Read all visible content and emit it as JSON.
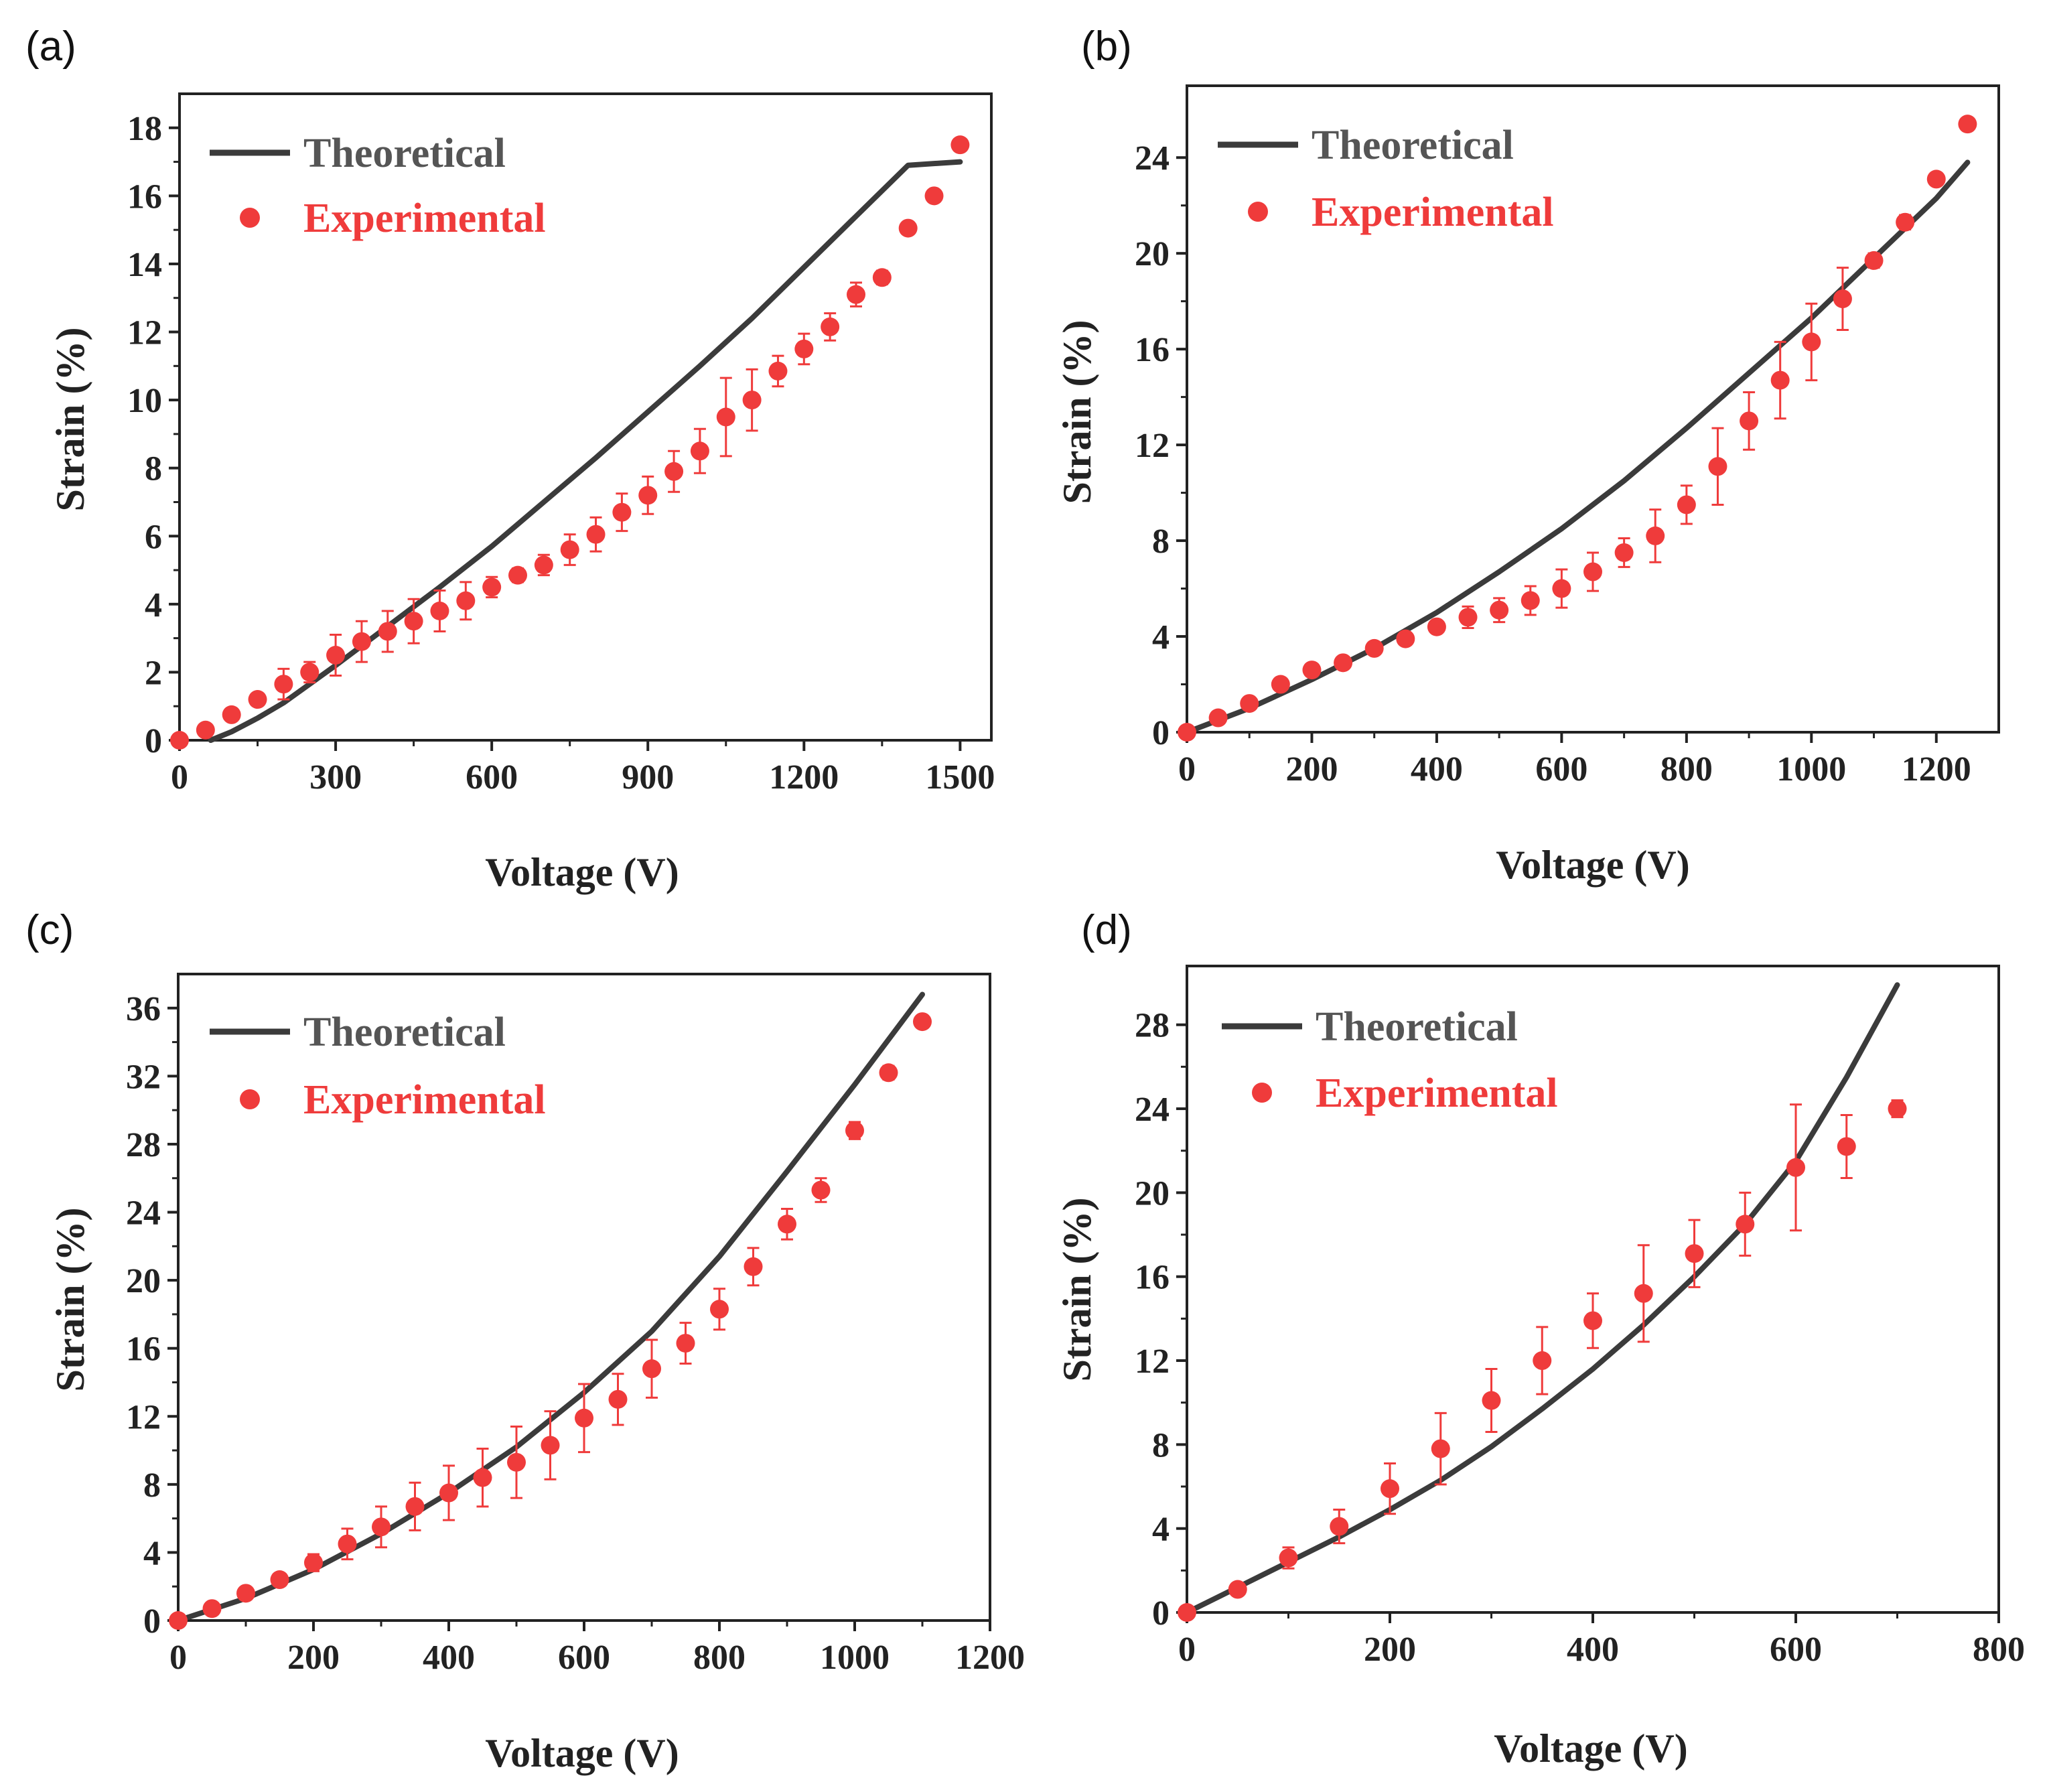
{
  "colors": {
    "theory": "#3b3b3b",
    "experimental": "#ef3b3b",
    "axis": "#222222",
    "background": "#ffffff"
  },
  "chart_data": [
    {
      "panel": "(a)",
      "type": "scatter",
      "xlabel": "Voltage (V)",
      "ylabel": "Strain (%)",
      "xlim": [
        0,
        1560
      ],
      "ylim": [
        0,
        19
      ],
      "xticks": [
        0,
        300,
        600,
        900,
        1200,
        1500
      ],
      "yticks": [
        0,
        2,
        4,
        6,
        8,
        10,
        12,
        14,
        16,
        18
      ],
      "legend": [
        "Theoretical",
        "Experimental"
      ],
      "legend_position": "top-left",
      "theoretical": {
        "x": [
          60,
          100,
          150,
          200,
          250,
          300,
          400,
          500,
          600,
          700,
          800,
          900,
          1000,
          1100,
          1200,
          1300,
          1400,
          1500
        ],
        "y": [
          0,
          0.25,
          0.65,
          1.1,
          1.65,
          2.2,
          3.35,
          4.5,
          5.7,
          7.0,
          8.3,
          9.65,
          11.0,
          12.4,
          13.9,
          15.4,
          16.9,
          17.0
        ]
      },
      "experimental": {
        "x": [
          0,
          50,
          100,
          150,
          200,
          250,
          300,
          350,
          400,
          450,
          500,
          550,
          600,
          650,
          700,
          750,
          800,
          850,
          900,
          950,
          1000,
          1050,
          1100,
          1150,
          1200,
          1250,
          1300,
          1350,
          1400,
          1450,
          1500
        ],
        "y": [
          0,
          0.3,
          0.75,
          1.2,
          1.65,
          2.0,
          2.5,
          2.9,
          3.2,
          3.5,
          3.8,
          4.1,
          4.5,
          4.85,
          5.15,
          5.6,
          6.05,
          6.7,
          7.2,
          7.9,
          8.5,
          9.5,
          10.0,
          10.85,
          11.5,
          12.15,
          13.1,
          13.6,
          15.05,
          16.0,
          17.5
        ],
        "err": [
          0,
          0,
          0,
          0,
          0.45,
          0.3,
          0.6,
          0.6,
          0.6,
          0.65,
          0.6,
          0.55,
          0.3,
          0.2,
          0.3,
          0.45,
          0.5,
          0.55,
          0.55,
          0.6,
          0.65,
          1.15,
          0.9,
          0.45,
          0.45,
          0.4,
          0.35,
          0.2,
          0.15,
          0.15,
          0
        ]
      }
    },
    {
      "panel": "(b)",
      "type": "scatter",
      "xlabel": "Voltage (V)",
      "ylabel": "Strain (%)",
      "xlim": [
        0,
        1300
      ],
      "ylim": [
        0,
        27
      ],
      "xticks": [
        0,
        200,
        400,
        600,
        800,
        1000,
        1200
      ],
      "yticks": [
        0,
        4,
        8,
        12,
        16,
        20,
        24
      ],
      "legend": [
        "Theoretical",
        "Experimental"
      ],
      "legend_position": "top-left",
      "theoretical": {
        "x": [
          0,
          100,
          200,
          300,
          400,
          500,
          600,
          700,
          800,
          900,
          1000,
          1100,
          1200,
          1250
        ],
        "y": [
          0,
          1.0,
          2.2,
          3.5,
          5.0,
          6.7,
          8.5,
          10.5,
          12.7,
          15.0,
          17.3,
          19.8,
          22.3,
          23.8
        ]
      },
      "experimental": {
        "x": [
          0,
          50,
          100,
          150,
          200,
          250,
          300,
          350,
          400,
          450,
          500,
          550,
          600,
          650,
          700,
          750,
          800,
          850,
          900,
          950,
          1000,
          1050,
          1100,
          1150,
          1200,
          1250
        ],
        "y": [
          0,
          0.6,
          1.2,
          2.0,
          2.6,
          2.9,
          3.5,
          3.9,
          4.4,
          4.8,
          5.1,
          5.5,
          6.0,
          6.7,
          7.5,
          8.2,
          9.5,
          11.1,
          13.0,
          14.7,
          16.3,
          18.1,
          19.7,
          21.3,
          23.1,
          25.4
        ],
        "err": [
          0,
          0,
          0,
          0,
          0,
          0,
          0,
          0.2,
          0,
          0.45,
          0.5,
          0.6,
          0.8,
          0.8,
          0.6,
          1.1,
          0.8,
          1.6,
          1.2,
          1.6,
          1.6,
          1.3,
          0.3,
          0.3,
          0,
          0
        ]
      }
    },
    {
      "panel": "(c)",
      "type": "scatter",
      "xlabel": "Voltage (V)",
      "ylabel": "Strain (%)",
      "xlim": [
        0,
        1200
      ],
      "ylim": [
        0,
        38
      ],
      "xticks": [
        0,
        200,
        400,
        600,
        800,
        1000,
        1200
      ],
      "yticks": [
        0,
        4,
        8,
        12,
        16,
        20,
        24,
        28,
        32,
        36
      ],
      "legend": [
        "Theoretical",
        "Experimental"
      ],
      "legend_position": "top-left",
      "theoretical": {
        "x": [
          0,
          100,
          200,
          300,
          400,
          500,
          600,
          700,
          800,
          900,
          1000,
          1100
        ],
        "y": [
          0,
          1.3,
          3.0,
          5.1,
          7.5,
          10.2,
          13.4,
          17.0,
          21.4,
          26.4,
          31.5,
          36.8
        ]
      },
      "experimental": {
        "x": [
          0,
          50,
          100,
          150,
          200,
          250,
          300,
          350,
          400,
          450,
          500,
          550,
          600,
          650,
          700,
          750,
          800,
          850,
          900,
          950,
          1000,
          1050,
          1100
        ],
        "y": [
          0,
          0.7,
          1.6,
          2.4,
          3.4,
          4.5,
          5.5,
          6.7,
          7.5,
          8.4,
          9.3,
          10.3,
          11.9,
          13.0,
          14.8,
          16.3,
          18.3,
          20.8,
          23.3,
          25.3,
          28.8,
          32.2,
          35.2
        ],
        "err": [
          0,
          0,
          0,
          0,
          0.5,
          0.9,
          1.2,
          1.4,
          1.6,
          1.7,
          2.1,
          2.0,
          2.0,
          1.5,
          1.7,
          1.2,
          1.2,
          1.1,
          0.9,
          0.7,
          0.5,
          0.4,
          0
        ]
      }
    },
    {
      "panel": "(d)",
      "type": "scatter",
      "xlabel": "Voltage (V)",
      "ylabel": "Strain (%)",
      "xlim": [
        0,
        800
      ],
      "ylim": [
        0,
        30.8
      ],
      "xticks": [
        0,
        200,
        400,
        600,
        800
      ],
      "yticks": [
        0,
        4,
        8,
        12,
        16,
        20,
        24,
        28
      ],
      "legend": [
        "Theoretical",
        "Experimental"
      ],
      "legend_position": "top-left",
      "theoretical": {
        "x": [
          0,
          50,
          100,
          150,
          200,
          250,
          300,
          350,
          400,
          450,
          500,
          550,
          600,
          650,
          700
        ],
        "y": [
          0,
          1.2,
          2.4,
          3.6,
          4.9,
          6.3,
          7.9,
          9.7,
          11.6,
          13.7,
          16.0,
          18.5,
          21.5,
          25.5,
          29.9
        ]
      },
      "experimental": {
        "x": [
          0,
          50,
          100,
          150,
          200,
          250,
          300,
          350,
          400,
          450,
          500,
          550,
          600,
          650,
          700
        ],
        "y": [
          0,
          1.1,
          2.6,
          4.1,
          5.9,
          7.8,
          10.1,
          12.0,
          13.9,
          15.2,
          17.1,
          18.5,
          21.2,
          22.2,
          24.0
        ],
        "err": [
          0,
          0,
          0.5,
          0.8,
          1.2,
          1.7,
          1.5,
          1.6,
          1.3,
          2.3,
          1.6,
          1.5,
          3.0,
          1.5,
          0.4
        ]
      }
    }
  ]
}
